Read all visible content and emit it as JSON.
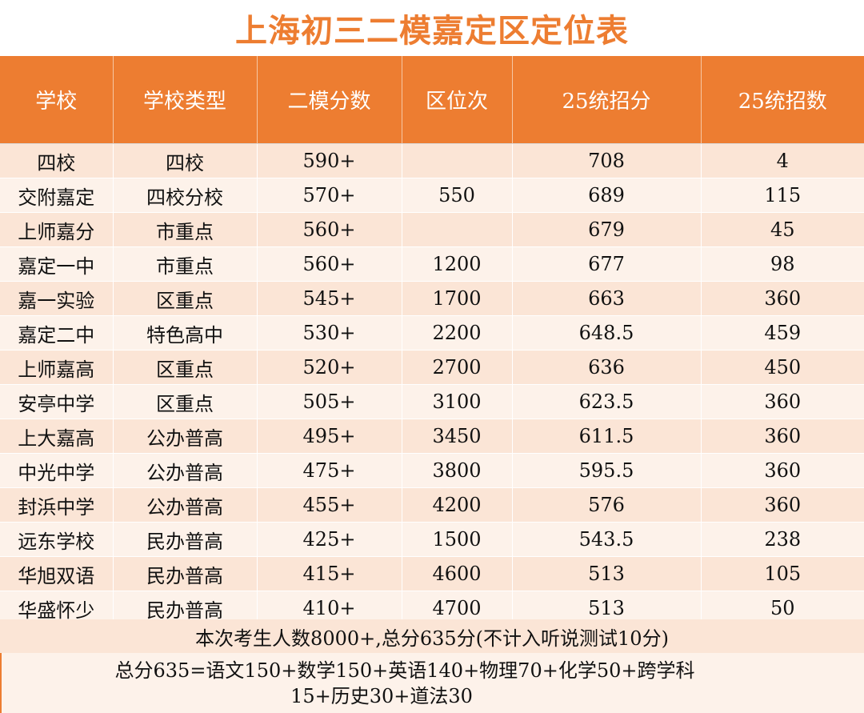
{
  "title": "上海初三二模嘉定区定位表",
  "headers": [
    "学校",
    "学校类型",
    "二模分数",
    "区位次",
    "25统招分",
    "25统招数"
  ],
  "rows": [
    [
      "四校",
      "四校",
      "590+",
      "",
      "708",
      "4"
    ],
    [
      "交附嘉定",
      "四校分校",
      "570+",
      "550",
      "689",
      "115"
    ],
    [
      "上师嘉分",
      "市重点",
      "560+",
      "",
      "679",
      "45"
    ],
    [
      "嘉定一中",
      "市重点",
      "560+",
      "1200",
      "677",
      "98"
    ],
    [
      "嘉一实验",
      "区重点",
      "545+",
      "1700",
      "663",
      "360"
    ],
    [
      "嘉定二中",
      "特色高中",
      "530+",
      "2200",
      "648.5",
      "459"
    ],
    [
      "上师嘉高",
      "区重点",
      "520+",
      "2700",
      "636",
      "450"
    ],
    [
      "安亭中学",
      "区重点",
      "505+",
      "3100",
      "623.5",
      "360"
    ],
    [
      "上大嘉高",
      "公办普高",
      "495+",
      "3450",
      "611.5",
      "360"
    ],
    [
      "中光中学",
      "公办普高",
      "475+",
      "3800",
      "595.5",
      "360"
    ],
    [
      "封浜中学",
      "公办普高",
      "455+",
      "4200",
      "576",
      "360"
    ],
    [
      "远东学校",
      "民办普高",
      "425+",
      "1500",
      "543.5",
      "238"
    ],
    [
      "华旭双语",
      "民办普高",
      "415+",
      "4600",
      "513",
      "105"
    ],
    [
      "华盛怀少",
      "民办普高",
      "410+",
      "4700",
      "513",
      "50"
    ]
  ],
  "notes": {
    "line1": "本次考生人数8000+,总分635分(不计入听说测试10分)",
    "line2a": "总分635=语文150+数学150+英语140+物理70+化学50+跨学科",
    "line2b": "15+历史30+道法30"
  },
  "colors": {
    "accent": "#ed7d31",
    "row_odd": "#fbe5d6",
    "row_even": "#fdf2ea"
  }
}
